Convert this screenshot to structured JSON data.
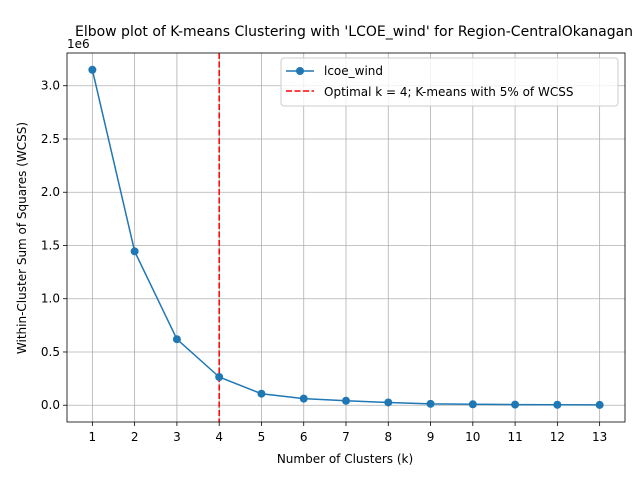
{
  "chart_data": {
    "type": "line",
    "title": "Elbow plot of K-means Clustering with 'LCOE_wind' for Region-CentralOkanagan",
    "xlabel": "Number of Clusters (k)",
    "ylabel": "Within-Cluster Sum of Squares (WCSS)",
    "y_offset_label": "1e6",
    "y_scale_factor": 1000000,
    "x": [
      1,
      2,
      3,
      4,
      5,
      6,
      7,
      8,
      9,
      10,
      11,
      12,
      13
    ],
    "series": [
      {
        "name": "lcoe_wind",
        "color": "#1f77b4",
        "values": [
          3150000,
          1445000,
          620000,
          265000,
          108000,
          62000,
          42000,
          26000,
          13000,
          9000,
          6000,
          4500,
          3000
        ]
      }
    ],
    "vline": {
      "x": 4,
      "color": "#ff0000",
      "style": "dashed",
      "label": "Optimal k = 4; K-means with 5% of WCSS"
    },
    "xlim": [
      0.4,
      13.6
    ],
    "ylim": [
      -157500,
      3307500
    ],
    "xticks": [
      1,
      2,
      3,
      4,
      5,
      6,
      7,
      8,
      9,
      10,
      11,
      12,
      13
    ],
    "yticks": [
      0,
      500000,
      1000000,
      1500000,
      2000000,
      2500000,
      3000000
    ],
    "ytick_labels": [
      "0.0",
      "0.5",
      "1.0",
      "1.5",
      "2.0",
      "2.5",
      "3.0"
    ],
    "grid": true,
    "legend_position": "upper right"
  }
}
